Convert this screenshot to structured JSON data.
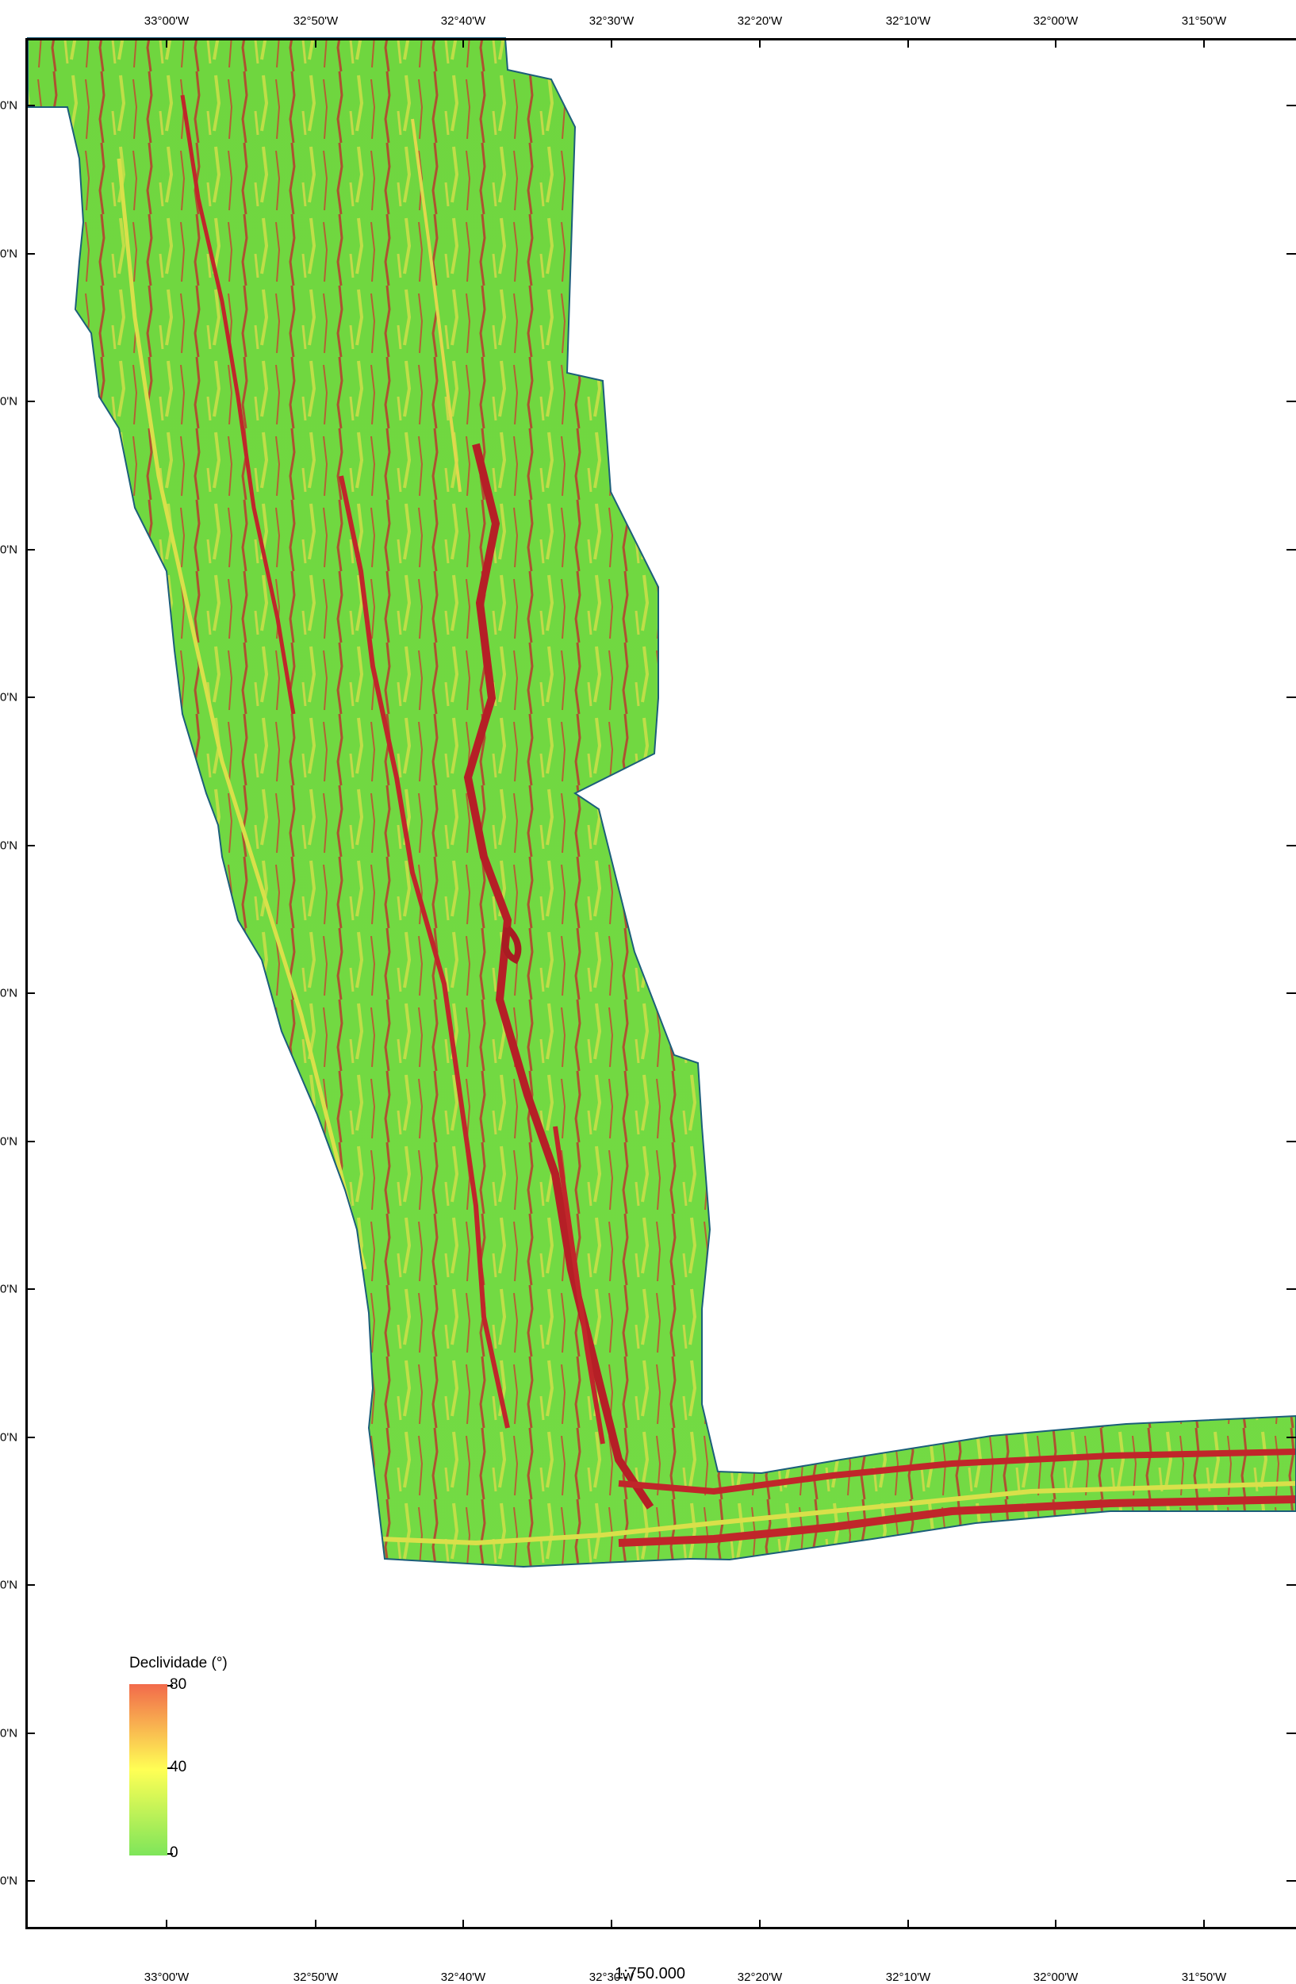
{
  "map": {
    "scale_text": "1:750.000",
    "legend": {
      "title": "Declividade (°)",
      "ticks": [
        "80",
        "40",
        "0"
      ],
      "colors": {
        "high": "#f26a4b",
        "mid": "#ffff55",
        "low": "#7ee55a"
      }
    },
    "longitude_labels": [
      "33°00'W",
      "32°50'W",
      "32°40'W",
      "32°30'W",
      "32°20'W",
      "32°10'W",
      "32°00'W",
      "31°50'W"
    ],
    "latitude_labels": [
      "0'N",
      "0'N",
      "0'N",
      "0'N",
      "0'N",
      "0'N",
      "0'N",
      "0'N",
      "0'N",
      "0'N",
      "0'N",
      "0'N",
      "0'N"
    ],
    "colors": {
      "terrain": "#6fdc3e",
      "steep": "#c0262a",
      "moderate": "#d9e04a",
      "outline": "#1b5e7a"
    }
  }
}
